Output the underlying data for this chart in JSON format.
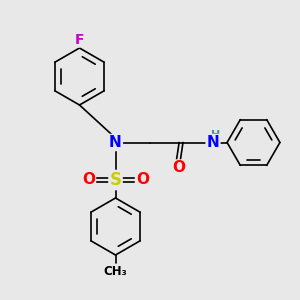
{
  "bg_color": "#e8e8e8",
  "atom_colors": {
    "C": "#000000",
    "N": "#0000ff",
    "O": "#ff0000",
    "S": "#cccc00",
    "F": "#cc00cc",
    "H": "#4a9090"
  },
  "bond_color": "#000000",
  "bond_width": 1.2,
  "fig_width": 3.0,
  "fig_height": 3.0,
  "dpi": 100
}
